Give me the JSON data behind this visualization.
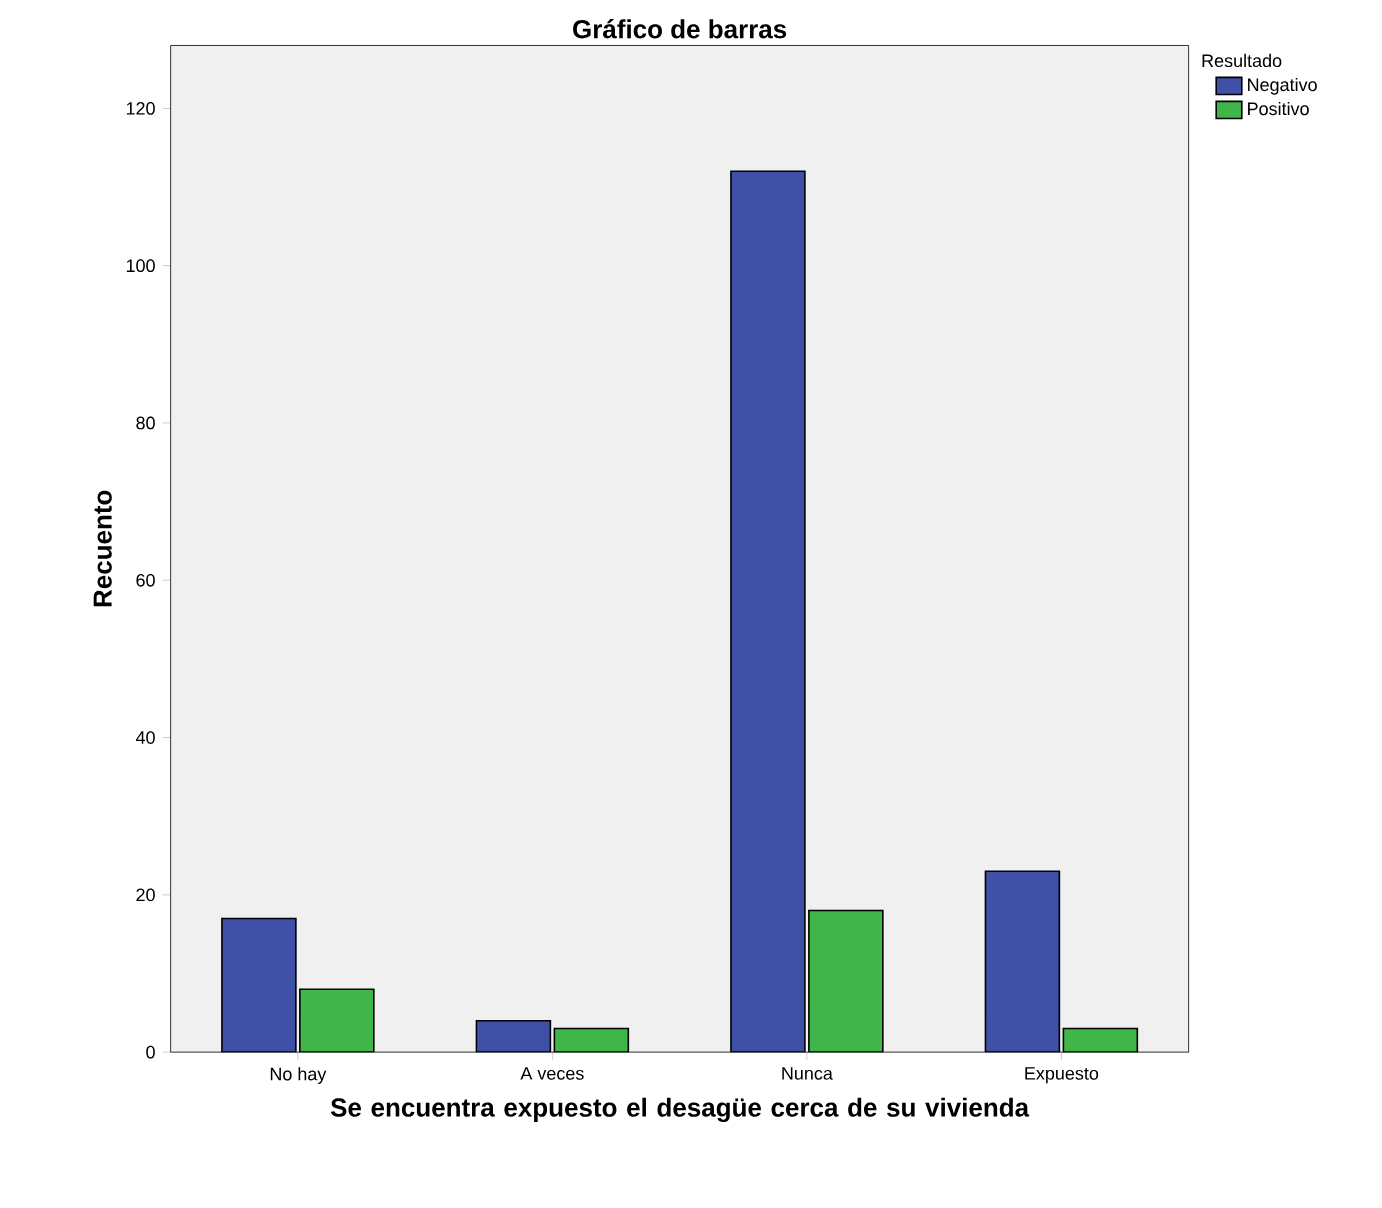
{
  "chart_data": {
    "type": "bar",
    "title": "Gráfico de barras",
    "xlabel": "Se encuentra expuesto el desagüe cerca de su vivienda",
    "ylabel": "Recuento",
    "legend_title": "Resultado",
    "categories": [
      "No hay",
      "A veces",
      "Nunca",
      "Expuesto"
    ],
    "series": [
      {
        "name": "Negativo",
        "color": "#3e51a6",
        "values": [
          17,
          4,
          112,
          23
        ]
      },
      {
        "name": "Positivo",
        "color": "#3fb54a",
        "values": [
          8,
          3,
          18,
          3
        ]
      }
    ],
    "ylim": [
      0,
      128
    ],
    "yticks": [
      0,
      20,
      40,
      60,
      80,
      100,
      120
    ],
    "grid": false,
    "legend": "top right"
  }
}
